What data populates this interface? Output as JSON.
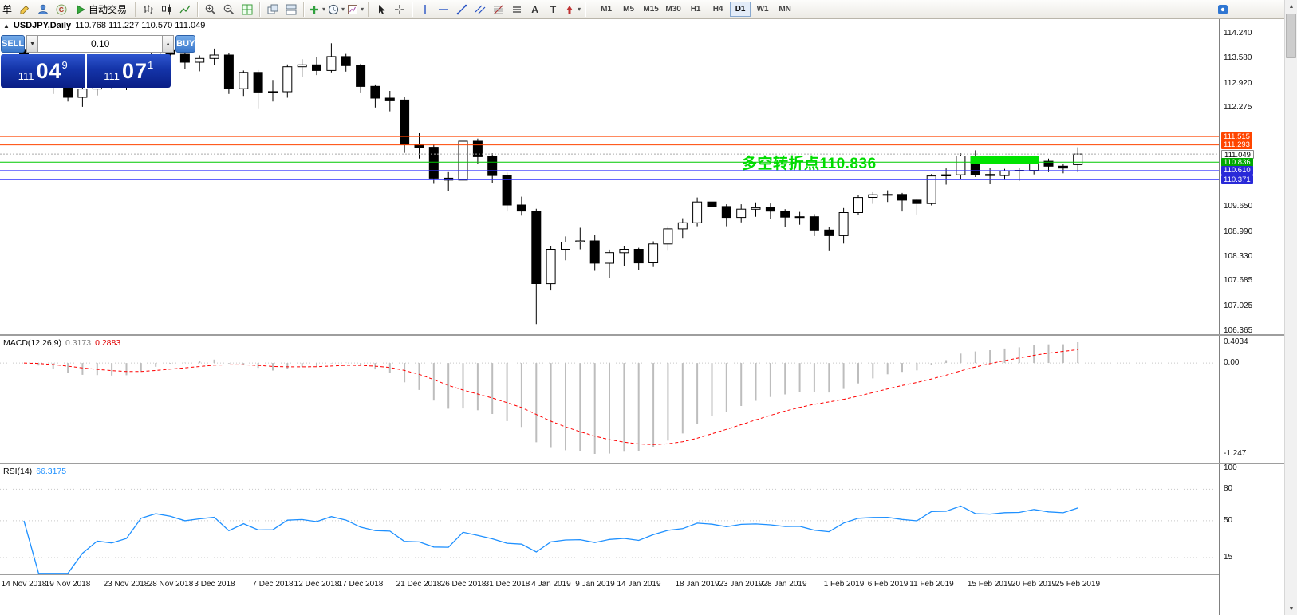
{
  "colors": {
    "bull": "#FFFFFF",
    "bear": "#000000",
    "candle_outline": "#000000",
    "orange_line": "#FF4500",
    "green_line": "#00C800",
    "blue_line": "#3030FF",
    "bid_line": "#ABABAB",
    "rect_fill": "#00E400",
    "annotation_green": "#00DC00",
    "macd_histogram": "#BDBDBD",
    "macd_signal": "#FF0000",
    "rsi_line": "#1E90FF"
  },
  "toolbar": {
    "order_fragment": "单",
    "autotrading": "自动交易",
    "text_tool": "A",
    "label_tool": "T",
    "timeframes": [
      "M1",
      "M5",
      "M15",
      "M30",
      "H1",
      "H4",
      "D1",
      "W1",
      "MN"
    ],
    "active_timeframe": "D1"
  },
  "window": {
    "collapse_icon": "▲",
    "title": "USDJPY,Daily",
    "ohlc": "110.768 111.227 110.570 111.049"
  },
  "one_click": {
    "sell": "SELL",
    "buy": "BUY",
    "lots": "0.10",
    "bid": {
      "prefix": "111",
      "big": "04",
      "sup": "9"
    },
    "ask": {
      "prefix": "111",
      "big": "07",
      "sup": "1"
    }
  },
  "annotation": {
    "text": "多空转折点110.836"
  },
  "indicators": {
    "macd": {
      "label": "MACD(12,26,9)",
      "value": "0.3173",
      "signal": "0.2883",
      "axis_max": "0.4034",
      "axis_zero": "0.00",
      "axis_min": "-1.247"
    },
    "rsi": {
      "label": "RSI(14)",
      "value": "66.3175",
      "axis": [
        100,
        80,
        50,
        15
      ]
    }
  },
  "price_axis": {
    "ticks": [
      "114.240",
      "113.580",
      "112.920",
      "112.275",
      "109.650",
      "108.990",
      "108.330",
      "107.685",
      "107.025",
      "106.365"
    ],
    "badges": [
      {
        "label": "111.515",
        "price": 111.515,
        "type": "orange"
      },
      {
        "label": "111.293",
        "price": 111.293,
        "type": "orange"
      },
      {
        "label": "111.049",
        "price": 111.049,
        "type": "white"
      },
      {
        "label": "110.836",
        "price": 110.836,
        "type": "green"
      },
      {
        "label": "110.610",
        "price": 110.61,
        "type": "blue"
      },
      {
        "label": "110.371",
        "price": 110.371,
        "type": "blue"
      }
    ]
  },
  "chart_data": [
    {
      "type": "candlestick",
      "symbol": "USDJPY",
      "period": "Daily",
      "title": "USDJPY,Daily 110.768 111.227 110.570 111.049",
      "ylim": [
        106.365,
        114.24
      ],
      "grid": false,
      "hlines": [
        {
          "price": 111.515,
          "color": "orange"
        },
        {
          "price": 111.293,
          "color": "orange"
        },
        {
          "price": 111.049,
          "color": "bid"
        },
        {
          "price": 110.836,
          "color": "green"
        },
        {
          "price": 110.61,
          "color": "blue"
        },
        {
          "price": 110.371,
          "color": "blue"
        }
      ],
      "rectangle": {
        "bar_start": 66,
        "bar_end": 70,
        "price_top": 111.005,
        "price_bottom": 110.78
      },
      "annotation": {
        "text": "多空转折点110.836",
        "price": 110.836
      },
      "time_labels": [
        [
          "14 Nov 2018",
          1
        ],
        [
          "19 Nov 2018",
          4
        ],
        [
          "23 Nov 2018",
          8
        ],
        [
          "28 Nov 2018",
          11
        ],
        [
          "3 Dec 2018",
          14
        ],
        [
          "7 Dec 2018",
          18
        ],
        [
          "12 Dec 2018",
          21
        ],
        [
          "17 Dec 2018",
          24
        ],
        [
          "21 Dec 2018",
          28
        ],
        [
          "26 Dec 2018",
          31
        ],
        [
          "31 Dec 2018",
          34
        ],
        [
          "4 Jan 2019",
          37
        ],
        [
          "9 Jan 2019",
          40
        ],
        [
          "14 Jan 2019",
          43
        ],
        [
          "18 Jan 2019",
          47
        ],
        [
          "23 Jan 2019",
          50
        ],
        [
          "28 Jan 2019",
          53
        ],
        [
          "1 Feb 2019",
          57
        ],
        [
          "6 Feb 2019",
          60
        ],
        [
          "11 Feb 2019",
          63
        ],
        [
          "15 Feb 2019",
          67
        ],
        [
          "20 Feb 2019",
          70
        ],
        [
          "25 Feb 2019",
          73
        ]
      ],
      "candles": [
        [
          "14 Nov 2018",
          113.8,
          113.86,
          113.38,
          113.48
        ],
        [
          "15 Nov 2018",
          113.48,
          113.56,
          112.93,
          113.06
        ],
        [
          "16 Nov 2018",
          113.06,
          113.12,
          112.64,
          112.84
        ],
        [
          "19 Nov 2018",
          112.84,
          112.9,
          112.44,
          112.55
        ],
        [
          "20 Nov 2018",
          112.55,
          112.83,
          112.3,
          112.77
        ],
        [
          "21 Nov 2018",
          112.77,
          113.03,
          112.6,
          112.96
        ],
        [
          "22 Nov 2018",
          112.96,
          113.06,
          112.78,
          112.88
        ],
        [
          "23 Nov 2018",
          112.88,
          113.12,
          112.74,
          112.97
        ],
        [
          "26 Nov 2018",
          112.97,
          113.62,
          112.92,
          113.58
        ],
        [
          "27 Nov 2018",
          113.58,
          113.86,
          113.41,
          113.79
        ],
        [
          "28 Nov 2018",
          113.79,
          113.92,
          113.54,
          113.69
        ],
        [
          "29 Nov 2018",
          113.69,
          113.76,
          113.29,
          113.48
        ],
        [
          "30 Nov 2018",
          113.48,
          113.66,
          113.24,
          113.58
        ],
        [
          "3 Dec 2018",
          113.58,
          113.84,
          113.41,
          113.67
        ],
        [
          "4 Dec 2018",
          113.67,
          113.72,
          112.64,
          112.78
        ],
        [
          "5 Dec 2018",
          112.78,
          113.26,
          112.59,
          113.21
        ],
        [
          "6 Dec 2018",
          113.21,
          113.27,
          112.24,
          112.69
        ],
        [
          "7 Dec 2018",
          112.69,
          113.01,
          112.44,
          112.7
        ],
        [
          "10 Dec 2018",
          112.7,
          113.42,
          112.54,
          113.36
        ],
        [
          "11 Dec 2018",
          113.36,
          113.56,
          113.09,
          113.41
        ],
        [
          "12 Dec 2018",
          113.41,
          113.61,
          113.14,
          113.26
        ],
        [
          "13 Dec 2018",
          113.26,
          113.98,
          113.21,
          113.63
        ],
        [
          "14 Dec 2018",
          113.63,
          113.7,
          113.23,
          113.39
        ],
        [
          "17 Dec 2018",
          113.39,
          113.44,
          112.68,
          112.84
        ],
        [
          "18 Dec 2018",
          112.84,
          112.89,
          112.28,
          112.53
        ],
        [
          "19 Dec 2018",
          112.53,
          112.72,
          112.18,
          112.48
        ],
        [
          "20 Dec 2018",
          112.48,
          112.57,
          111.08,
          111.3
        ],
        [
          "21 Dec 2018",
          111.3,
          111.6,
          110.93,
          111.23
        ],
        [
          "24 Dec 2018",
          111.23,
          111.32,
          110.26,
          110.41
        ],
        [
          "25 Dec 2018",
          110.41,
          110.57,
          110.08,
          110.36
        ],
        [
          "26 Dec 2018",
          110.36,
          111.44,
          110.24,
          111.39
        ],
        [
          "27 Dec 2018",
          111.39,
          111.46,
          110.78,
          110.98
        ],
        [
          "28 Dec 2018",
          110.98,
          111.07,
          110.28,
          110.48
        ],
        [
          "31 Dec 2018",
          110.48,
          110.56,
          109.53,
          109.7
        ],
        [
          "2 Jan 2019",
          109.7,
          109.92,
          109.42,
          109.54
        ],
        [
          "3 Jan 2019",
          109.54,
          109.6,
          106.55,
          107.62
        ],
        [
          "4 Jan 2019",
          107.62,
          108.62,
          107.44,
          108.53
        ],
        [
          "7 Jan 2019",
          108.53,
          108.87,
          108.24,
          108.72
        ],
        [
          "8 Jan 2019",
          108.72,
          109.1,
          108.53,
          108.75
        ],
        [
          "9 Jan 2019",
          108.75,
          108.9,
          107.96,
          108.16
        ],
        [
          "10 Jan 2019",
          108.16,
          108.52,
          107.76,
          108.44
        ],
        [
          "11 Jan 2019",
          108.44,
          108.62,
          108.08,
          108.53
        ],
        [
          "14 Jan 2019",
          108.53,
          108.57,
          107.98,
          108.17
        ],
        [
          "15 Jan 2019",
          108.17,
          108.74,
          108.06,
          108.67
        ],
        [
          "16 Jan 2019",
          108.67,
          109.14,
          108.49,
          109.07
        ],
        [
          "17 Jan 2019",
          109.07,
          109.35,
          108.83,
          109.23
        ],
        [
          "18 Jan 2019",
          109.23,
          109.9,
          109.14,
          109.78
        ],
        [
          "21 Jan 2019",
          109.78,
          109.84,
          109.44,
          109.66
        ],
        [
          "22 Jan 2019",
          109.66,
          109.72,
          109.14,
          109.37
        ],
        [
          "23 Jan 2019",
          109.37,
          109.72,
          109.24,
          109.59
        ],
        [
          "24 Jan 2019",
          109.59,
          109.77,
          109.39,
          109.63
        ],
        [
          "25 Jan 2019",
          109.63,
          109.74,
          109.33,
          109.54
        ],
        [
          "28 Jan 2019",
          109.54,
          109.59,
          109.13,
          109.38
        ],
        [
          "29 Jan 2019",
          109.38,
          109.52,
          109.18,
          109.39
        ],
        [
          "30 Jan 2019",
          109.39,
          109.46,
          108.88,
          109.04
        ],
        [
          "31 Jan 2019",
          109.04,
          109.12,
          108.48,
          108.89
        ],
        [
          "1 Feb 2019",
          108.89,
          109.62,
          108.68,
          109.5
        ],
        [
          "4 Feb 2019",
          109.5,
          109.97,
          109.43,
          109.9
        ],
        [
          "5 Feb 2019",
          109.9,
          110.04,
          109.73,
          109.97
        ],
        [
          "6 Feb 2019",
          109.97,
          110.09,
          109.78,
          109.98
        ],
        [
          "7 Feb 2019",
          109.98,
          110.02,
          109.53,
          109.83
        ],
        [
          "8 Feb 2019",
          109.83,
          109.87,
          109.45,
          109.74
        ],
        [
          "11 Feb 2019",
          109.74,
          110.52,
          109.69,
          110.47
        ],
        [
          "12 Feb 2019",
          110.47,
          110.67,
          110.24,
          110.5
        ],
        [
          "13 Feb 2019",
          110.5,
          111.07,
          110.39,
          111.0
        ],
        [
          "14 Feb 2019",
          111.0,
          111.15,
          110.44,
          110.51
        ],
        [
          "15 Feb 2019",
          110.51,
          110.69,
          110.25,
          110.48
        ],
        [
          "18 Feb 2019",
          110.48,
          110.66,
          110.36,
          110.6
        ],
        [
          "19 Feb 2019",
          110.6,
          110.69,
          110.34,
          110.62
        ],
        [
          "20 Feb 2019",
          110.62,
          110.9,
          110.51,
          110.86
        ],
        [
          "21 Feb 2019",
          110.86,
          110.93,
          110.57,
          110.73
        ],
        [
          "22 Feb 2019",
          110.73,
          110.79,
          110.54,
          110.68
        ],
        [
          "25 Feb 2019",
          110.77,
          111.23,
          110.57,
          111.05
        ]
      ]
    },
    {
      "type": "macd",
      "name": "MACD(12,26,9)",
      "fast": 12,
      "slow": 26,
      "signal_period": 9,
      "current": 0.3173,
      "current_signal": 0.2883,
      "visible_range": [
        -1.247,
        0.4034
      ]
    },
    {
      "type": "rsi",
      "name": "RSI(14)",
      "period": 14,
      "current": 66.3175,
      "levels": [
        80,
        50,
        15
      ],
      "range": [
        0,
        100
      ]
    }
  ]
}
